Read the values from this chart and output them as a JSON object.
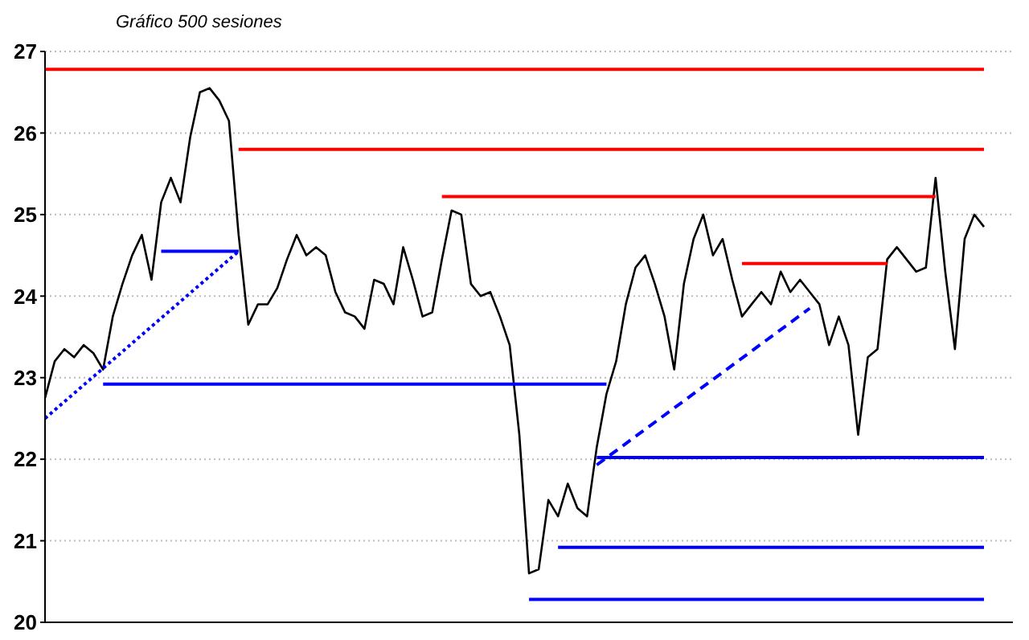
{
  "chart_data": {
    "type": "line",
    "subtitle": "Gráfico 500 sesiones",
    "categories": [
      null,
      null,
      null,
      null,
      null,
      null,
      null,
      null,
      null,
      null,
      null,
      null,
      null,
      null,
      null,
      null,
      null,
      null,
      null,
      null,
      null,
      null,
      null,
      null,
      null,
      null,
      null,
      null,
      null,
      null,
      null,
      null,
      null,
      null,
      null,
      null,
      null,
      null,
      null,
      null,
      null,
      null,
      null,
      null,
      null,
      null,
      null,
      null,
      null,
      null,
      null,
      null,
      null,
      null,
      null,
      null,
      null,
      null,
      null,
      null,
      null,
      null,
      null,
      null,
      null,
      null,
      null,
      null,
      null,
      null,
      null,
      null,
      null,
      null,
      null,
      null,
      null,
      null,
      null,
      null,
      null,
      null,
      null,
      null,
      null,
      null,
      null,
      null,
      null,
      null,
      null,
      null,
      null,
      null,
      null,
      null,
      null,
      null
    ],
    "ylim": [
      20,
      27
    ],
    "yticks": [
      20,
      21,
      22,
      23,
      24,
      25,
      26,
      27
    ],
    "grid": "y",
    "tick_labels": "y",
    "legend": false,
    "marker": "none",
    "series": [
      {
        "color": "#000000",
        "line_style": "solid",
        "values": [
          22.75,
          23.2,
          23.35,
          23.25,
          23.4,
          23.3,
          23.1,
          23.75,
          24.15,
          24.5,
          24.75,
          24.2,
          25.15,
          25.45,
          25.15,
          25.95,
          26.5,
          26.55,
          26.4,
          26.15,
          24.75,
          23.65,
          23.9,
          23.9,
          24.1,
          24.45,
          24.75,
          24.5,
          24.6,
          24.5,
          24.05,
          23.8,
          23.75,
          23.6,
          24.2,
          24.15,
          23.9,
          24.6,
          24.2,
          23.75,
          23.8,
          24.45,
          25.05,
          25.0,
          24.15,
          24.0,
          24.05,
          23.75,
          23.4,
          22.3,
          20.6,
          20.65,
          21.5,
          21.3,
          21.7,
          21.4,
          21.3,
          22.15,
          22.8,
          23.2,
          23.9,
          24.35,
          24.5,
          24.15,
          23.75,
          23.1,
          24.15,
          24.7,
          25.0,
          24.5,
          24.7,
          24.2,
          23.75,
          23.9,
          24.05,
          23.9,
          24.3,
          24.05,
          24.2,
          24.05,
          23.9,
          23.4,
          23.75,
          23.4,
          22.3,
          23.25,
          23.35,
          24.45,
          24.6,
          24.45,
          24.3,
          24.35,
          25.45,
          24.3,
          23.35,
          24.7,
          25.0,
          24.85
        ]
      },
      {
        "color": "#ff0000",
        "line_style": "solid",
        "values": [
          26.78,
          null,
          null,
          null,
          null,
          null,
          null,
          null,
          null,
          null,
          null,
          null,
          null,
          null,
          null,
          null,
          null,
          null,
          null,
          null,
          null,
          null,
          null,
          null,
          null,
          null,
          null,
          null,
          null,
          null,
          null,
          null,
          null,
          null,
          null,
          null,
          null,
          null,
          null,
          null,
          null,
          null,
          null,
          null,
          null,
          null,
          null,
          null,
          null,
          null,
          null,
          null,
          null,
          null,
          null,
          null,
          null,
          null,
          null,
          null,
          null,
          null,
          null,
          null,
          null,
          null,
          null,
          null,
          null,
          null,
          null,
          null,
          null,
          null,
          null,
          null,
          null,
          null,
          null,
          null,
          null,
          null,
          null,
          null,
          null,
          null,
          null,
          null,
          null,
          null,
          null,
          null,
          null,
          null,
          null,
          null,
          null,
          26.78
        ]
      },
      {
        "color": "#ff0000",
        "line_style": "solid",
        "values": [
          null,
          null,
          null,
          null,
          null,
          null,
          null,
          null,
          null,
          null,
          null,
          null,
          null,
          null,
          null,
          null,
          null,
          null,
          null,
          null,
          25.8,
          null,
          null,
          null,
          null,
          null,
          null,
          null,
          null,
          null,
          null,
          null,
          null,
          null,
          null,
          null,
          null,
          null,
          null,
          null,
          null,
          null,
          null,
          null,
          null,
          null,
          null,
          null,
          null,
          null,
          null,
          null,
          null,
          null,
          null,
          null,
          null,
          null,
          null,
          null,
          null,
          null,
          null,
          null,
          null,
          null,
          null,
          null,
          null,
          null,
          null,
          null,
          null,
          null,
          null,
          null,
          null,
          null,
          null,
          null,
          null,
          null,
          null,
          null,
          null,
          null,
          null,
          null,
          null,
          null,
          null,
          null,
          null,
          null,
          null,
          null,
          null,
          25.8
        ]
      },
      {
        "color": "#ff0000",
        "line_style": "solid",
        "values": [
          null,
          null,
          null,
          null,
          null,
          null,
          null,
          null,
          null,
          null,
          null,
          null,
          null,
          null,
          null,
          null,
          null,
          null,
          null,
          null,
          null,
          null,
          null,
          null,
          null,
          null,
          null,
          null,
          null,
          null,
          null,
          null,
          null,
          null,
          null,
          null,
          null,
          null,
          null,
          null,
          null,
          25.22,
          null,
          null,
          null,
          null,
          null,
          null,
          null,
          null,
          null,
          null,
          null,
          null,
          null,
          null,
          null,
          null,
          null,
          null,
          null,
          null,
          null,
          null,
          null,
          null,
          null,
          null,
          null,
          null,
          null,
          null,
          null,
          null,
          null,
          null,
          null,
          null,
          null,
          null,
          null,
          null,
          null,
          null,
          null,
          null,
          null,
          null,
          null,
          null,
          null,
          null,
          25.22,
          null,
          null,
          null,
          null,
          null
        ]
      },
      {
        "color": "#ff0000",
        "line_style": "solid",
        "values": [
          null,
          null,
          null,
          null,
          null,
          null,
          null,
          null,
          null,
          null,
          null,
          null,
          null,
          null,
          null,
          null,
          null,
          null,
          null,
          null,
          null,
          null,
          null,
          null,
          null,
          null,
          null,
          null,
          null,
          null,
          null,
          null,
          null,
          null,
          null,
          null,
          null,
          null,
          null,
          null,
          null,
          null,
          null,
          null,
          null,
          null,
          null,
          null,
          null,
          null,
          null,
          null,
          null,
          null,
          null,
          null,
          null,
          null,
          null,
          null,
          null,
          null,
          null,
          null,
          null,
          null,
          null,
          null,
          null,
          null,
          null,
          null,
          24.4,
          null,
          null,
          null,
          null,
          null,
          null,
          null,
          null,
          null,
          null,
          null,
          null,
          null,
          null,
          24.4,
          null,
          null,
          null,
          null,
          null,
          null,
          null,
          null,
          null,
          null
        ]
      },
      {
        "color": "#0000ff",
        "line_style": "solid",
        "values": [
          null,
          null,
          null,
          null,
          null,
          null,
          null,
          null,
          null,
          null,
          null,
          null,
          24.55,
          null,
          null,
          null,
          null,
          null,
          null,
          null,
          24.55,
          null,
          null,
          null,
          null,
          null,
          null,
          null,
          null,
          null,
          null,
          null,
          null,
          null,
          null,
          null,
          null,
          null,
          null,
          null,
          null,
          null,
          null,
          null,
          null,
          null,
          null,
          null,
          null,
          null,
          null,
          null,
          null,
          null,
          null,
          null,
          null,
          null,
          null,
          null,
          null,
          null,
          null,
          null,
          null,
          null,
          null,
          null,
          null,
          null,
          null,
          null,
          null,
          null,
          null,
          null,
          null,
          null,
          null,
          null,
          null,
          null,
          null,
          null,
          null,
          null,
          null,
          null,
          null,
          null,
          null,
          null,
          null,
          null,
          null,
          null,
          null,
          null
        ]
      },
      {
        "color": "#0000ff",
        "line_style": "solid",
        "values": [
          null,
          null,
          null,
          null,
          null,
          null,
          22.92,
          null,
          null,
          null,
          null,
          null,
          null,
          null,
          null,
          null,
          null,
          null,
          null,
          null,
          null,
          null,
          null,
          null,
          null,
          null,
          null,
          null,
          null,
          null,
          null,
          null,
          null,
          null,
          null,
          null,
          null,
          null,
          null,
          null,
          null,
          null,
          null,
          null,
          null,
          null,
          null,
          null,
          null,
          null,
          null,
          null,
          null,
          null,
          null,
          null,
          null,
          null,
          22.92,
          null,
          null,
          null,
          null,
          null,
          null,
          null,
          null,
          null,
          null,
          null,
          null,
          null,
          null,
          null,
          null,
          null,
          null,
          null,
          null,
          null,
          null,
          null,
          null,
          null,
          null,
          null,
          null,
          null,
          null,
          null,
          null,
          null,
          null,
          null,
          null,
          null,
          null,
          null
        ]
      },
      {
        "color": "#0000ff",
        "line_style": "solid",
        "values": [
          null,
          null,
          null,
          null,
          null,
          null,
          null,
          null,
          null,
          null,
          null,
          null,
          null,
          null,
          null,
          null,
          null,
          null,
          null,
          null,
          null,
          null,
          null,
          null,
          null,
          null,
          null,
          null,
          null,
          null,
          null,
          null,
          null,
          null,
          null,
          null,
          null,
          null,
          null,
          null,
          null,
          null,
          null,
          null,
          null,
          null,
          null,
          null,
          null,
          null,
          null,
          null,
          null,
          null,
          null,
          null,
          null,
          22.02,
          null,
          null,
          null,
          null,
          null,
          null,
          null,
          null,
          null,
          null,
          null,
          null,
          null,
          null,
          null,
          null,
          null,
          null,
          null,
          null,
          null,
          null,
          null,
          null,
          null,
          null,
          null,
          null,
          null,
          null,
          null,
          null,
          null,
          null,
          null,
          null,
          null,
          null,
          null,
          22.02
        ]
      },
      {
        "color": "#0000ff",
        "line_style": "solid",
        "values": [
          null,
          null,
          null,
          null,
          null,
          null,
          null,
          null,
          null,
          null,
          null,
          null,
          null,
          null,
          null,
          null,
          null,
          null,
          null,
          null,
          null,
          null,
          null,
          null,
          null,
          null,
          null,
          null,
          null,
          null,
          null,
          null,
          null,
          null,
          null,
          null,
          null,
          null,
          null,
          null,
          null,
          null,
          null,
          null,
          null,
          null,
          null,
          null,
          null,
          null,
          null,
          null,
          null,
          20.92,
          null,
          null,
          null,
          null,
          null,
          null,
          null,
          null,
          null,
          null,
          null,
          null,
          null,
          null,
          null,
          null,
          null,
          null,
          null,
          null,
          null,
          null,
          null,
          null,
          null,
          null,
          null,
          null,
          null,
          null,
          null,
          null,
          null,
          null,
          null,
          null,
          null,
          null,
          null,
          null,
          null,
          null,
          null,
          20.92
        ]
      },
      {
        "color": "#0000ff",
        "line_style": "solid",
        "values": [
          null,
          null,
          null,
          null,
          null,
          null,
          null,
          null,
          null,
          null,
          null,
          null,
          null,
          null,
          null,
          null,
          null,
          null,
          null,
          null,
          null,
          null,
          null,
          null,
          null,
          null,
          null,
          null,
          null,
          null,
          null,
          null,
          null,
          null,
          null,
          null,
          null,
          null,
          null,
          null,
          null,
          null,
          null,
          null,
          null,
          null,
          null,
          null,
          null,
          null,
          20.28,
          null,
          null,
          null,
          null,
          null,
          null,
          null,
          null,
          null,
          null,
          null,
          null,
          null,
          null,
          null,
          null,
          null,
          null,
          null,
          null,
          null,
          null,
          null,
          null,
          null,
          null,
          null,
          null,
          null,
          null,
          null,
          null,
          null,
          null,
          null,
          null,
          null,
          null,
          null,
          null,
          null,
          null,
          null,
          null,
          null,
          null,
          20.28
        ]
      },
      {
        "color": "#0000ff",
        "line_style": "dotted",
        "values": [
          22.5,
          null,
          null,
          null,
          null,
          null,
          null,
          null,
          null,
          null,
          null,
          null,
          null,
          null,
          null,
          null,
          null,
          null,
          null,
          null,
          24.55,
          null,
          null,
          null,
          null,
          null,
          null,
          null,
          null,
          null,
          null,
          null,
          null,
          null,
          null,
          null,
          null,
          null,
          null,
          null,
          null,
          null,
          null,
          null,
          null,
          null,
          null,
          null,
          null,
          null,
          null,
          null,
          null,
          null,
          null,
          null,
          null,
          null,
          null,
          null,
          null,
          null,
          null,
          null,
          null,
          null,
          null,
          null,
          null,
          null,
          null,
          null,
          null,
          null,
          null,
          null,
          null,
          null,
          null,
          null,
          null,
          null,
          null,
          null,
          null,
          null,
          null,
          null,
          null,
          null,
          null,
          null,
          null,
          null,
          null,
          null,
          null,
          null
        ]
      },
      {
        "color": "#0000ff",
        "line_style": "dashed",
        "values": [
          null,
          null,
          null,
          null,
          null,
          null,
          null,
          null,
          null,
          null,
          null,
          null,
          null,
          null,
          null,
          null,
          null,
          null,
          null,
          null,
          null,
          null,
          null,
          null,
          null,
          null,
          null,
          null,
          null,
          null,
          null,
          null,
          null,
          null,
          null,
          null,
          null,
          null,
          null,
          null,
          null,
          null,
          null,
          null,
          null,
          null,
          null,
          null,
          null,
          null,
          null,
          null,
          null,
          null,
          null,
          null,
          null,
          21.93,
          null,
          null,
          null,
          null,
          null,
          null,
          null,
          null,
          null,
          null,
          null,
          null,
          null,
          null,
          null,
          null,
          null,
          null,
          null,
          null,
          null,
          23.85,
          null,
          null,
          null,
          null,
          null,
          null,
          null,
          null,
          null,
          null,
          null,
          null,
          null,
          null,
          null,
          null,
          null,
          null
        ]
      }
    ]
  }
}
